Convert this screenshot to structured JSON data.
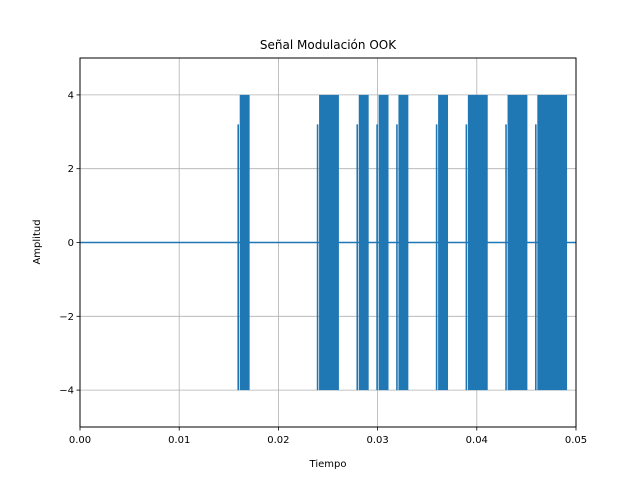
{
  "chart_data": {
    "type": "line",
    "title": "Señal Modulación OOK",
    "xlabel": "Tiempo",
    "ylabel": "Amplitud",
    "xlim": [
      0.0,
      0.05
    ],
    "ylim": [
      -5,
      5
    ],
    "grid": true,
    "x_ticks": [
      0.0,
      0.01,
      0.02,
      0.03,
      0.04,
      0.05
    ],
    "x_tick_labels": [
      "0.00",
      "0.01",
      "0.02",
      "0.03",
      "0.04",
      "0.05"
    ],
    "y_ticks": [
      -4,
      -2,
      0,
      2,
      4
    ],
    "y_tick_labels": [
      "−4",
      "−2",
      "0",
      "2",
      "4"
    ],
    "series": [
      {
        "color": "#1f77b4",
        "amplitude": 4,
        "baseline": 0,
        "on_intervals": [
          [
            0.0161,
            0.0171
          ],
          [
            0.0241,
            0.0261
          ],
          [
            0.0281,
            0.0291
          ],
          [
            0.0301,
            0.0311
          ],
          [
            0.0321,
            0.0331
          ],
          [
            0.0361,
            0.0371
          ],
          [
            0.0391,
            0.0411
          ],
          [
            0.0431,
            0.0451
          ],
          [
            0.0461,
            0.0491
          ]
        ]
      }
    ]
  }
}
